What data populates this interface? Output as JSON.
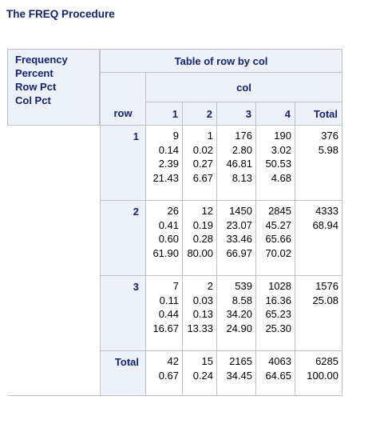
{
  "page": {
    "title": "The FREQ Procedure"
  },
  "table": {
    "title": "Table of row by col",
    "legend": [
      "Frequency",
      "Percent",
      "Row Pct",
      "Col Pct"
    ],
    "row_var": "row",
    "col_var": "col",
    "col_headers": [
      "1",
      "2",
      "3",
      "4",
      "Total"
    ],
    "rows": [
      {
        "label": "1",
        "cells": [
          [
            "9",
            "0.14",
            "2.39",
            "21.43"
          ],
          [
            "1",
            "0.02",
            "0.27",
            "6.67"
          ],
          [
            "176",
            "2.80",
            "46.81",
            "8.13"
          ],
          [
            "190",
            "3.02",
            "50.53",
            "4.68"
          ],
          [
            "376",
            "5.98"
          ]
        ]
      },
      {
        "label": "2",
        "cells": [
          [
            "26",
            "0.41",
            "0.60",
            "61.90"
          ],
          [
            "12",
            "0.19",
            "0.28",
            "80.00"
          ],
          [
            "1450",
            "23.07",
            "33.46",
            "66.97"
          ],
          [
            "2845",
            "45.27",
            "65.66",
            "70.02"
          ],
          [
            "4333",
            "68.94"
          ]
        ]
      },
      {
        "label": "3",
        "cells": [
          [
            "7",
            "0.11",
            "0.44",
            "16.67"
          ],
          [
            "2",
            "0.03",
            "0.13",
            "13.33"
          ],
          [
            "539",
            "8.58",
            "34.20",
            "24.90"
          ],
          [
            "1028",
            "16.36",
            "65.23",
            "25.30"
          ],
          [
            "1576",
            "25.08"
          ]
        ]
      }
    ],
    "total_row": {
      "label": "Total",
      "cells": [
        [
          "42",
          "0.67"
        ],
        [
          "15",
          "0.24"
        ],
        [
          "2165",
          "34.45"
        ],
        [
          "4063",
          "64.65"
        ],
        [
          "6285",
          "100.00"
        ]
      ]
    }
  }
}
